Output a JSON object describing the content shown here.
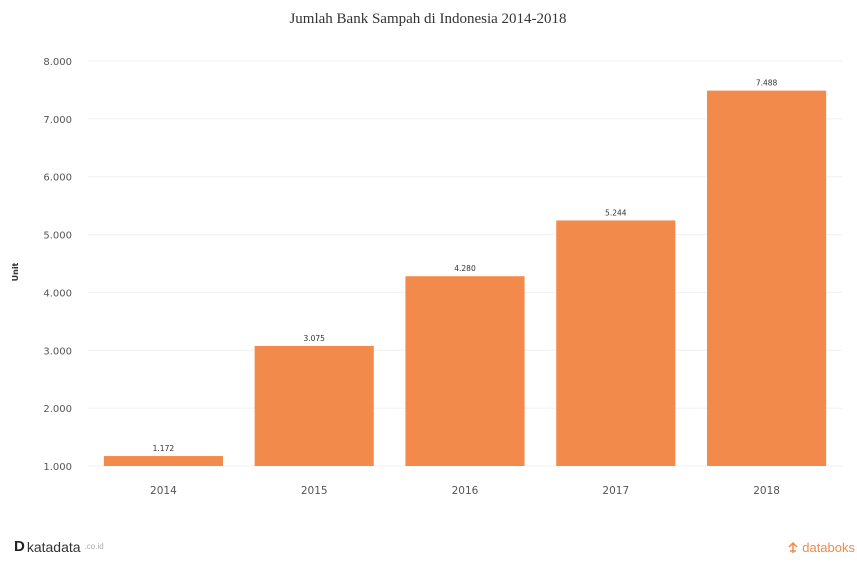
{
  "chart_data": {
    "type": "bar",
    "title": "Jumlah Bank Sampah di Indonesia 2014-2018",
    "xlabel": "",
    "ylabel": "Unit",
    "categories": [
      "2014",
      "2015",
      "2016",
      "2017",
      "2018"
    ],
    "values": [
      1172,
      3075,
      4280,
      5244,
      7488
    ],
    "data_labels": [
      "1.172",
      "3.075",
      "4.280",
      "5.244",
      "7.488"
    ],
    "ylim": [
      1000,
      8000
    ],
    "yticks": [
      1000,
      2000,
      3000,
      4000,
      5000,
      6000,
      7000,
      8000
    ],
    "ytick_labels": [
      "1.000",
      "2.000",
      "3.000",
      "4.000",
      "5.000",
      "6.000",
      "7.000",
      "8.000"
    ],
    "grid": true,
    "legend": "none",
    "bar_color": "#f28a4c"
  },
  "branding": {
    "left_mark": "D",
    "left_name": "katadata",
    "left_suffix": ".co.id",
    "right_icon": "databoks-icon",
    "right_name": "databoks",
    "accent": "#f08a4b"
  }
}
